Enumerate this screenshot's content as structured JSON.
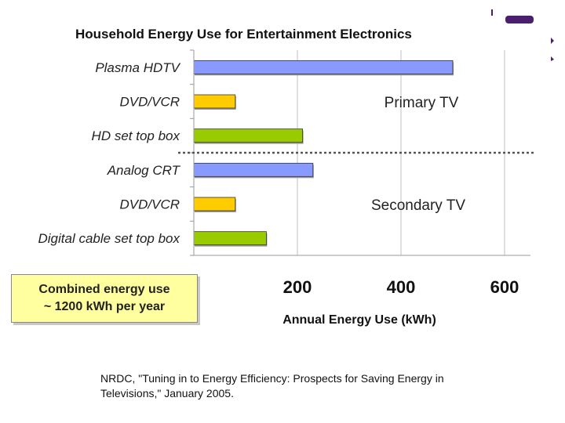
{
  "chart_data": {
    "type": "bar",
    "orientation": "horizontal",
    "title": "Household Energy Use for Entertainment Electronics",
    "xlabel": "Annual Energy Use (kWh)",
    "ylabel": "",
    "xlim": [
      0,
      650
    ],
    "xticks": [
      "200",
      "400",
      "600"
    ],
    "xtick_values": [
      200,
      400,
      600
    ],
    "grid": "vertical",
    "categories": [
      "Plasma HDTV",
      "DVD/VCR",
      "HD set top box",
      "Analog CRT",
      "DVD/VCR",
      "Digital cable set top box"
    ],
    "values": [
      500,
      80,
      210,
      230,
      80,
      140
    ],
    "bar_colors": [
      "#8899ff",
      "#ffcc00",
      "#99cc00",
      "#8899ff",
      "#ffcc00",
      "#99cc00"
    ],
    "groups": [
      {
        "label": "Primary TV",
        "categories": [
          0,
          1,
          2
        ]
      },
      {
        "label": "Secondary TV",
        "categories": [
          3,
          4,
          5
        ]
      }
    ]
  },
  "callout": {
    "line1": "Combined energy use",
    "line2": "~ 1200 kWh per year"
  },
  "source": {
    "text": "NRDC, \"Tuning in to Energy Efficiency: Prospects for Saving Energy in Televisions,\" January 2005."
  },
  "colors": {
    "accent": "#4a1f6e",
    "gridline": "#c0c0c0",
    "divider": "#555555"
  },
  "icons": {
    "corner": "presentation-logo-icon"
  }
}
